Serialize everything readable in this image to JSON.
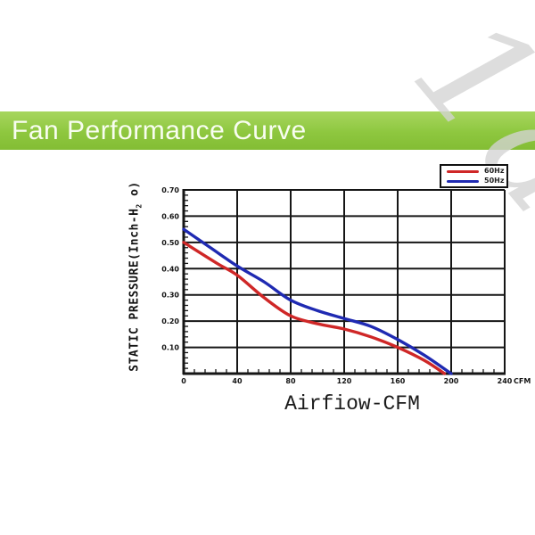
{
  "header": {
    "title": "Fan Performance Curve",
    "background_color": "#8ec73f",
    "title_color": "#f8fdf0"
  },
  "watermark": {
    "text": "1a"
  },
  "chart_data": {
    "type": "line",
    "title": "Fan Performance Curve",
    "xlabel": "Airfiow-CFM",
    "ylabel": "STATIC PRESSURE(Inch-H2 o)",
    "ylabel_parts": {
      "prefix": "STATIC PRESSURE(Inch-H",
      "sub": "2",
      "suffix": " o)"
    },
    "x_unit": "CFM",
    "xlim": [
      0,
      240
    ],
    "ylim": [
      0,
      0.7
    ],
    "x_ticks": [
      0,
      40,
      80,
      120,
      160,
      200,
      240
    ],
    "y_ticks": [
      0.1,
      0.2,
      0.3,
      0.4,
      0.5,
      0.6,
      0.7
    ],
    "x_minor_step": 8,
    "y_minor_step": 0.02,
    "grid": true,
    "grid_color": "#161616",
    "legend_position": "top-right",
    "series": [
      {
        "name": "60Hz",
        "color": "#cf2727",
        "points": [
          [
            0,
            0.5
          ],
          [
            25,
            0.42
          ],
          [
            40,
            0.375
          ],
          [
            60,
            0.29
          ],
          [
            80,
            0.22
          ],
          [
            100,
            0.19
          ],
          [
            120,
            0.17
          ],
          [
            140,
            0.14
          ],
          [
            160,
            0.1
          ],
          [
            180,
            0.05
          ],
          [
            195,
            0.0
          ]
        ]
      },
      {
        "name": "50Hz",
        "color": "#1f2ab2",
        "points": [
          [
            0,
            0.55
          ],
          [
            20,
            0.48
          ],
          [
            40,
            0.41
          ],
          [
            60,
            0.35
          ],
          [
            80,
            0.28
          ],
          [
            100,
            0.24
          ],
          [
            120,
            0.21
          ],
          [
            140,
            0.18
          ],
          [
            160,
            0.13
          ],
          [
            180,
            0.07
          ],
          [
            200,
            0.0
          ]
        ]
      }
    ]
  }
}
